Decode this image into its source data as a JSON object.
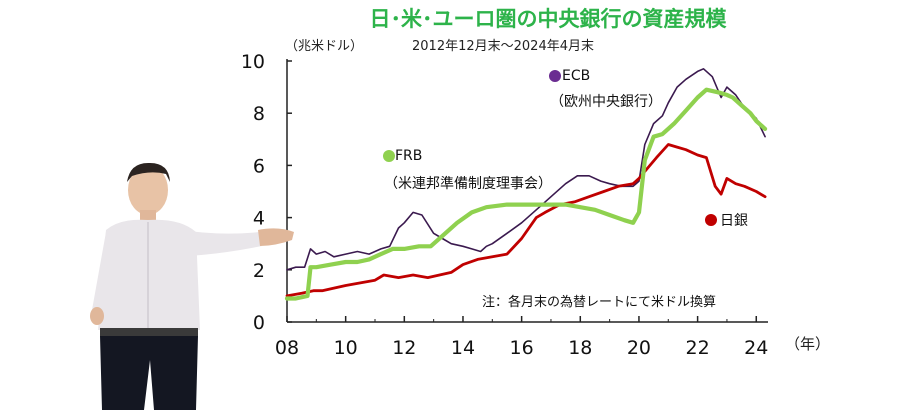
{
  "chart_data": {
    "type": "line",
    "title": "日･米･ユーロ圏の中央銀行の資産規模",
    "subtitle_unit": "（兆米ドル）",
    "period": "2012年12月末～2024年4月末",
    "xlabel": "（年）",
    "ylabel": "",
    "xlim": [
      2008,
      2024.4
    ],
    "ylim": [
      0,
      10
    ],
    "x_ticks": [
      "08",
      "10",
      "12",
      "14",
      "16",
      "18",
      "20",
      "22",
      "24"
    ],
    "x_tick_values": [
      2008,
      2010,
      2012,
      2014,
      2016,
      2018,
      2020,
      2022,
      2024
    ],
    "y_ticks": [
      "0",
      "2",
      "4",
      "6",
      "8",
      "10"
    ],
    "y_tick_values": [
      0,
      2,
      4,
      6,
      8,
      10
    ],
    "note": "注：各月末の為替レートにて米ドル換算",
    "colors": {
      "title": "#2db34a",
      "ecb": "#3b1a4f",
      "frb": "#8fd14f",
      "boj": "#c00000",
      "axis": "#222222"
    },
    "series": [
      {
        "name": "ECB",
        "label_line1": "ECB",
        "label_line2": "（欧州中央銀行）",
        "color": "#3b1a4f",
        "x": [
          2008.0,
          2008.3,
          2008.6,
          2008.8,
          2009.0,
          2009.3,
          2009.6,
          2010.0,
          2010.4,
          2010.8,
          2011.2,
          2011.5,
          2011.8,
          2012.0,
          2012.3,
          2012.6,
          2013.0,
          2013.3,
          2013.6,
          2014.0,
          2014.3,
          2014.6,
          2014.8,
          2015.0,
          2015.5,
          2016.0,
          2016.5,
          2017.0,
          2017.5,
          2017.9,
          2018.3,
          2018.7,
          2019.0,
          2019.4,
          2019.8,
          2020.0,
          2020.2,
          2020.5,
          2020.8,
          2021.0,
          2021.3,
          2021.6,
          2022.0,
          2022.2,
          2022.5,
          2022.8,
          2023.0,
          2023.3,
          2023.6,
          2024.0,
          2024.3
        ],
        "values": [
          2.0,
          2.1,
          2.1,
          2.8,
          2.6,
          2.7,
          2.5,
          2.6,
          2.7,
          2.6,
          2.8,
          2.9,
          3.6,
          3.8,
          4.2,
          4.1,
          3.4,
          3.2,
          3.0,
          2.9,
          2.8,
          2.7,
          2.9,
          3.0,
          3.4,
          3.8,
          4.3,
          4.8,
          5.3,
          5.6,
          5.6,
          5.4,
          5.3,
          5.2,
          5.2,
          5.4,
          6.8,
          7.6,
          7.9,
          8.4,
          9.0,
          9.3,
          9.6,
          9.7,
          9.4,
          8.6,
          9.0,
          8.7,
          8.2,
          7.8,
          7.1
        ]
      },
      {
        "name": "FRB",
        "label_line1": "FRB",
        "label_line2": "（米連邦準備制度理事会）",
        "color": "#8fd14f",
        "x": [
          2008.0,
          2008.3,
          2008.7,
          2008.8,
          2009.0,
          2009.5,
          2010.0,
          2010.4,
          2010.8,
          2011.2,
          2011.6,
          2012.0,
          2012.5,
          2012.9,
          2013.3,
          2013.8,
          2014.3,
          2014.8,
          2015.5,
          2016.5,
          2017.5,
          2018.0,
          2018.5,
          2019.0,
          2019.5,
          2019.8,
          2020.0,
          2020.2,
          2020.5,
          2020.8,
          2021.2,
          2021.6,
          2022.0,
          2022.3,
          2022.7,
          2023.0,
          2023.2,
          2023.5,
          2023.8,
          2024.0,
          2024.3
        ],
        "values": [
          0.9,
          0.9,
          1.0,
          2.1,
          2.1,
          2.2,
          2.3,
          2.3,
          2.4,
          2.6,
          2.8,
          2.8,
          2.9,
          2.9,
          3.3,
          3.8,
          4.2,
          4.4,
          4.5,
          4.5,
          4.5,
          4.4,
          4.3,
          4.1,
          3.9,
          3.8,
          4.2,
          6.2,
          7.1,
          7.2,
          7.6,
          8.1,
          8.6,
          8.9,
          8.8,
          8.7,
          8.6,
          8.3,
          8.0,
          7.7,
          7.4
        ]
      },
      {
        "name": "日銀",
        "label_line1": "日銀",
        "label_line2": "",
        "color": "#c00000",
        "x": [
          2008.0,
          2008.5,
          2008.9,
          2009.2,
          2009.6,
          2010.0,
          2010.5,
          2011.0,
          2011.3,
          2011.8,
          2012.3,
          2012.8,
          2013.2,
          2013.6,
          2014.0,
          2014.5,
          2015.0,
          2015.5,
          2016.0,
          2016.5,
          2016.8,
          2017.3,
          2017.8,
          2018.3,
          2018.8,
          2019.3,
          2019.8,
          2020.0,
          2020.3,
          2020.6,
          2021.0,
          2021.3,
          2021.6,
          2022.0,
          2022.3,
          2022.6,
          2022.8,
          2023.0,
          2023.3,
          2023.6,
          2024.0,
          2024.3
        ],
        "values": [
          1.0,
          1.1,
          1.2,
          1.2,
          1.3,
          1.4,
          1.5,
          1.6,
          1.8,
          1.7,
          1.8,
          1.7,
          1.8,
          1.9,
          2.2,
          2.4,
          2.5,
          2.6,
          3.2,
          4.0,
          4.2,
          4.5,
          4.6,
          4.8,
          5.0,
          5.2,
          5.3,
          5.5,
          5.9,
          6.3,
          6.8,
          6.7,
          6.6,
          6.4,
          6.3,
          5.2,
          4.9,
          5.5,
          5.3,
          5.2,
          5.0,
          4.8
        ]
      }
    ]
  }
}
